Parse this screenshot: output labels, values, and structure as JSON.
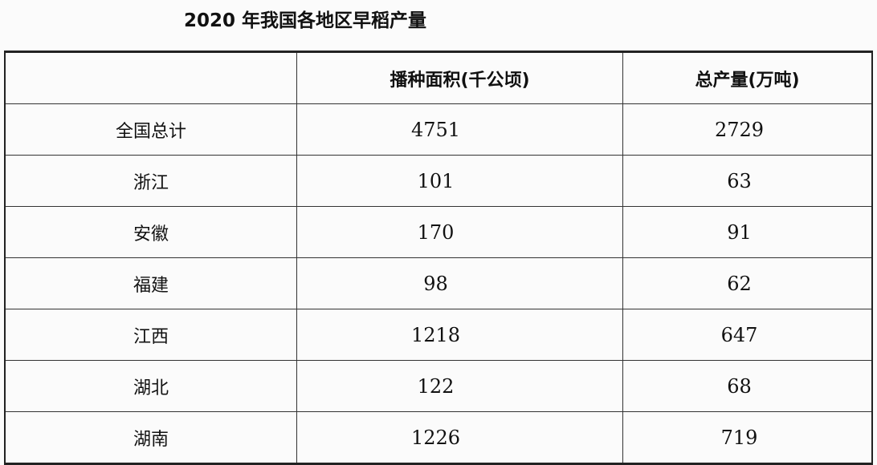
{
  "title": "2020 年我国各地区早稻产量",
  "table": {
    "headers": [
      "",
      "播种面积(千公顷)",
      "总产量(万吨)"
    ],
    "rows": [
      {
        "region": "全国总计",
        "area": "4751",
        "output": "2729"
      },
      {
        "region": "浙江",
        "area": "101",
        "output": "63"
      },
      {
        "region": "安徽",
        "area": "170",
        "output": "91"
      },
      {
        "region": "福建",
        "area": "98",
        "output": "62"
      },
      {
        "region": "江西",
        "area": "1218",
        "output": "647"
      },
      {
        "region": "湖北",
        "area": "122",
        "output": "68"
      },
      {
        "region": "湖南",
        "area": "1226",
        "output": "719"
      }
    ]
  }
}
